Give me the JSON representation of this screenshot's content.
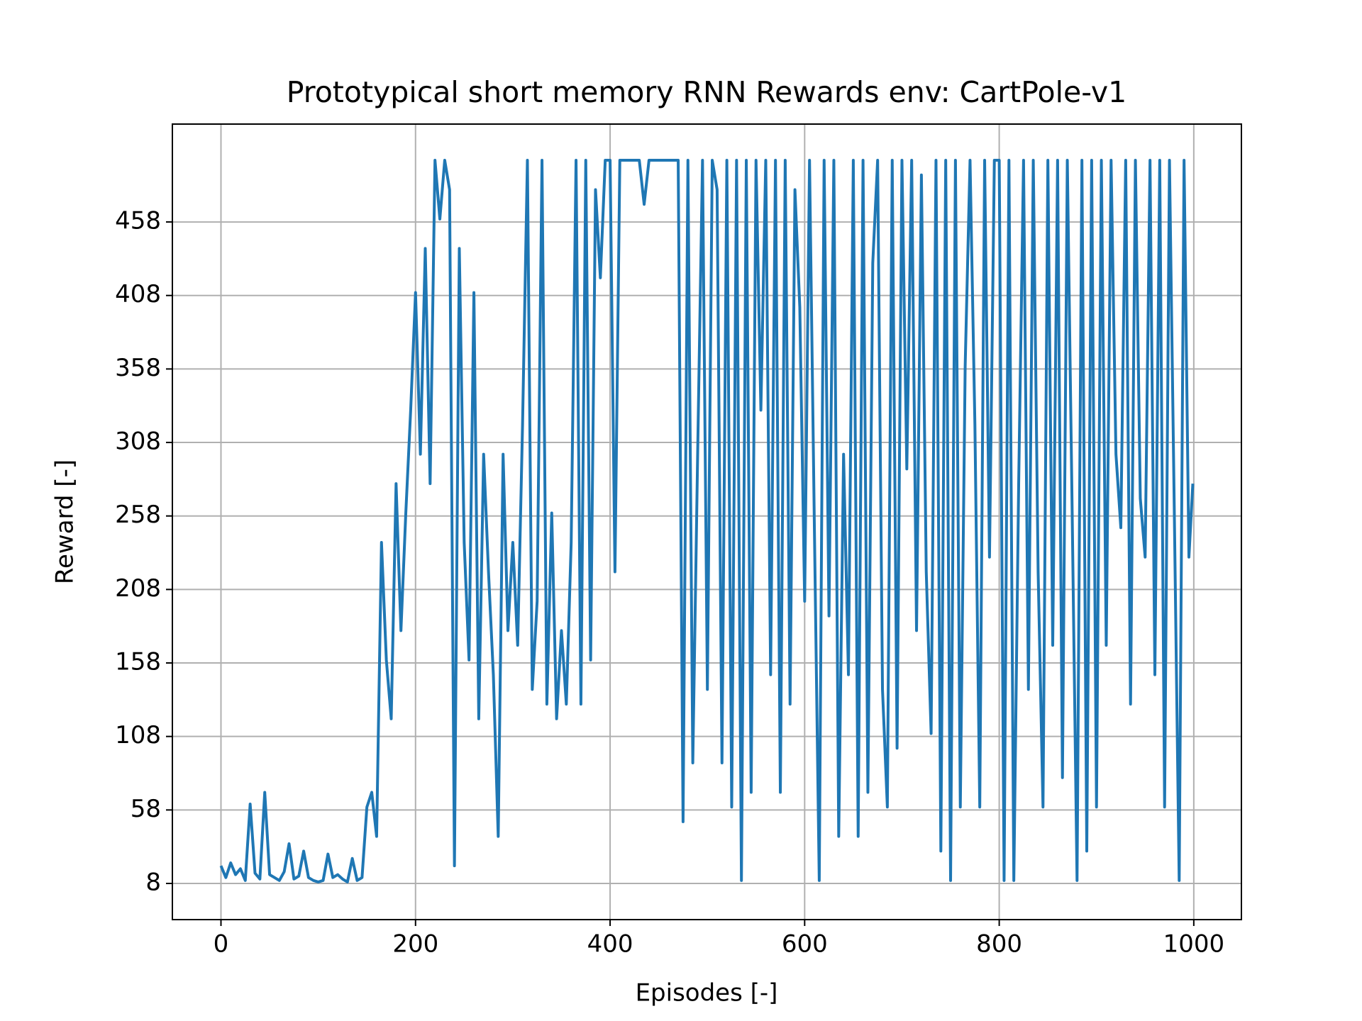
{
  "chart_data": {
    "type": "line",
    "title": "Prototypical short memory RNN Rewards env: CartPole-v1",
    "x_label": "Episodes [-]",
    "y_label": "Reward [-]",
    "x": [
      0,
      5,
      10,
      15,
      20,
      25,
      30,
      35,
      40,
      45,
      50,
      55,
      60,
      65,
      70,
      75,
      80,
      85,
      90,
      95,
      100,
      105,
      110,
      115,
      120,
      125,
      130,
      135,
      140,
      145,
      150,
      155,
      160,
      165,
      170,
      175,
      180,
      185,
      190,
      195,
      200,
      205,
      210,
      215,
      220,
      225,
      230,
      235,
      240,
      245,
      250,
      255,
      260,
      265,
      270,
      275,
      280,
      285,
      290,
      295,
      300,
      305,
      310,
      315,
      320,
      325,
      330,
      335,
      340,
      345,
      350,
      355,
      360,
      365,
      370,
      375,
      380,
      385,
      390,
      395,
      400,
      405,
      410,
      415,
      420,
      425,
      430,
      435,
      440,
      445,
      450,
      455,
      460,
      465,
      470,
      475,
      480,
      485,
      490,
      495,
      500,
      505,
      510,
      515,
      520,
      525,
      530,
      535,
      540,
      545,
      550,
      555,
      560,
      565,
      570,
      575,
      580,
      585,
      590,
      595,
      600,
      605,
      610,
      615,
      620,
      625,
      630,
      635,
      640,
      645,
      650,
      655,
      660,
      665,
      670,
      675,
      680,
      685,
      690,
      695,
      700,
      705,
      710,
      715,
      720,
      725,
      730,
      735,
      740,
      745,
      750,
      755,
      760,
      765,
      770,
      775,
      780,
      785,
      790,
      795,
      800,
      805,
      810,
      815,
      820,
      825,
      830,
      835,
      840,
      845,
      850,
      855,
      860,
      865,
      870,
      875,
      880,
      885,
      890,
      895,
      900,
      905,
      910,
      915,
      920,
      925,
      930,
      935,
      940,
      945,
      950,
      955,
      960,
      965,
      970,
      975,
      980,
      985,
      990,
      995,
      999
    ],
    "series": [
      {
        "name": "Reward",
        "color": "#1f77b4",
        "values": [
          20,
          12,
          22,
          14,
          18,
          10,
          62,
          15,
          11,
          70,
          14,
          12,
          10,
          16,
          35,
          11,
          13,
          30,
          12,
          10,
          9,
          10,
          28,
          12,
          14,
          11,
          9,
          25,
          10,
          12,
          60,
          70,
          40,
          240,
          160,
          120,
          280,
          180,
          260,
          330,
          410,
          300,
          440,
          280,
          500,
          460,
          500,
          480,
          20,
          440,
          240,
          160,
          410,
          120,
          300,
          220,
          150,
          40,
          300,
          180,
          240,
          170,
          320,
          500,
          140,
          200,
          500,
          130,
          260,
          120,
          180,
          130,
          240,
          500,
          130,
          500,
          160,
          480,
          420,
          500,
          500,
          220,
          500,
          500,
          500,
          500,
          500,
          470,
          500,
          500,
          500,
          500,
          500,
          500,
          500,
          50,
          500,
          90,
          300,
          500,
          140,
          500,
          480,
          90,
          500,
          60,
          500,
          10,
          500,
          70,
          500,
          330,
          500,
          150,
          500,
          70,
          500,
          130,
          480,
          400,
          200,
          500,
          250,
          10,
          500,
          190,
          500,
          40,
          300,
          150,
          500,
          40,
          500,
          70,
          430,
          500,
          140,
          60,
          500,
          100,
          500,
          290,
          500,
          180,
          490,
          220,
          110,
          500,
          30,
          500,
          10,
          500,
          60,
          360,
          500,
          320,
          60,
          500,
          230,
          500,
          500,
          10,
          500,
          10,
          280,
          500,
          140,
          500,
          220,
          60,
          500,
          170,
          500,
          80,
          500,
          260,
          10,
          500,
          30,
          500,
          60,
          500,
          170,
          500,
          300,
          250,
          500,
          130,
          500,
          270,
          230,
          500,
          150,
          500,
          60,
          500,
          260,
          10,
          500,
          230,
          280
        ]
      }
    ],
    "xlim": [
      -49.95,
      1048.95
    ],
    "ylim": [
      -16.6,
      524.6
    ],
    "xticks": [
      0,
      200,
      400,
      600,
      800,
      1000
    ],
    "yticks": [
      8,
      58,
      108,
      158,
      208,
      258,
      308,
      358,
      408,
      458
    ],
    "grid": true
  }
}
